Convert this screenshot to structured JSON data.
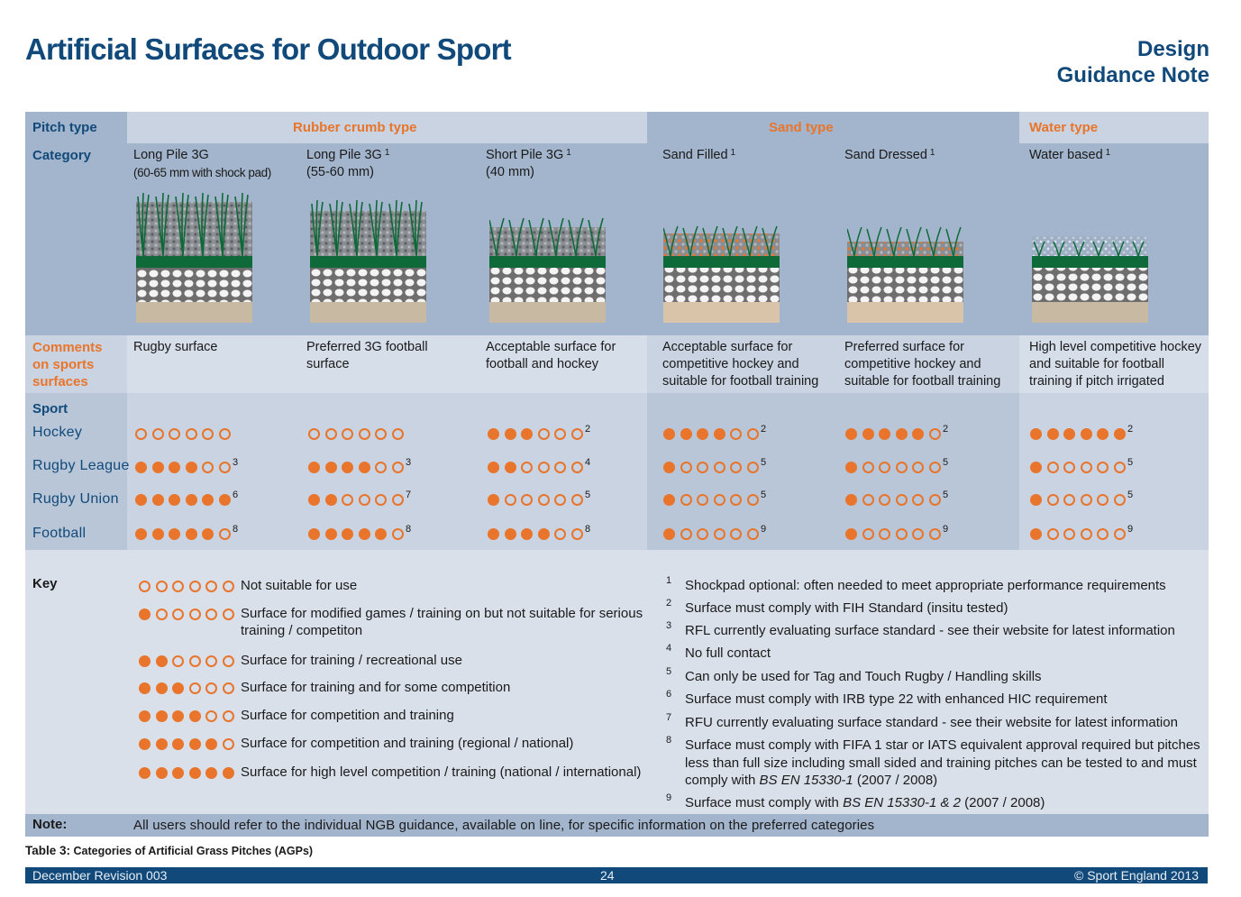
{
  "header": {
    "title": "Artificial Surfaces for Outdoor Sport",
    "right_line1": "Design",
    "right_line2": "Guidance Note"
  },
  "labels": {
    "pitch_type": "Pitch type",
    "category": "Category",
    "comments": "Comments on sports surfaces",
    "sport": "Sport",
    "key": "Key",
    "note": "Note:"
  },
  "groups": {
    "rubber": "Rubber crumb type",
    "sand": "Sand type",
    "water": "Water type"
  },
  "categories": [
    {
      "name": "Long Pile 3G",
      "sup": "",
      "size": "(60-65 mm with shock pad)",
      "comment": "Rugby surface"
    },
    {
      "name": "Long Pile 3G",
      "sup": "1",
      "size": "(55-60 mm)",
      "comment": "Preferred 3G football surface"
    },
    {
      "name": "Short Pile 3G",
      "sup": "1",
      "size": "(40 mm)",
      "comment": "Acceptable surface for football and hockey"
    },
    {
      "name": "Sand Filled",
      "sup": "1",
      "size": "",
      "comment": "Acceptable surface for competitive hockey and suitable for football training"
    },
    {
      "name": "Sand Dressed",
      "sup": "1",
      "size": "",
      "comment": "Preferred surface for competitive hockey and suitable for football training"
    },
    {
      "name": "Water based",
      "sup": "1",
      "size": "",
      "comment": "High level competitive hockey and suitable for football training if pitch irrigated"
    }
  ],
  "sports": [
    {
      "name": "Hockey",
      "ratings": [
        [
          0,
          ""
        ],
        [
          0,
          ""
        ],
        [
          3,
          "2"
        ],
        [
          4,
          "2"
        ],
        [
          5,
          "2"
        ],
        [
          6,
          "2"
        ]
      ]
    },
    {
      "name": "Rugby League",
      "ratings": [
        [
          4,
          "3"
        ],
        [
          4,
          "3"
        ],
        [
          2,
          "4"
        ],
        [
          1,
          "5"
        ],
        [
          1,
          "5"
        ],
        [
          1,
          "5"
        ]
      ]
    },
    {
      "name": "Rugby Union",
      "ratings": [
        [
          6,
          "6"
        ],
        [
          2,
          "7"
        ],
        [
          1,
          "5"
        ],
        [
          1,
          "5"
        ],
        [
          1,
          "5"
        ],
        [
          1,
          "5"
        ]
      ]
    },
    {
      "name": "Football",
      "ratings": [
        [
          5,
          "8"
        ],
        [
          5,
          "8"
        ],
        [
          4,
          "8"
        ],
        [
          1,
          "9"
        ],
        [
          1,
          "9"
        ],
        [
          1,
          "9"
        ]
      ]
    }
  ],
  "key_items": [
    {
      "level": 0,
      "text": "Not suitable for use"
    },
    {
      "level": 1,
      "text": "Surface for modified games / training on but not suitable for serious training / competiton"
    },
    {
      "level": 2,
      "text": "Surface for training / recreational use"
    },
    {
      "level": 3,
      "text": "Surface for training and for some competition"
    },
    {
      "level": 4,
      "text": "Surface for competition and training"
    },
    {
      "level": 5,
      "text": "Surface for competition and training (regional / national)"
    },
    {
      "level": 6,
      "text": "Surface for high level competition / training (national / international)"
    }
  ],
  "footnotes": [
    {
      "num": "1",
      "text": "Shockpad optional: often needed to meet appropriate performance requirements"
    },
    {
      "num": "2",
      "text": "Surface must comply with FIH Standard (insitu tested)"
    },
    {
      "num": "3",
      "text": "RFL currently evaluating surface standard - see their website for latest information"
    },
    {
      "num": "4",
      "text": "No full contact"
    },
    {
      "num": "5",
      "text": "Can only be used for Tag and Touch Rugby / Handling skills"
    },
    {
      "num": "6",
      "text": "Surface must comply with IRB type 22 with enhanced HIC requirement"
    },
    {
      "num": "7",
      "text": "RFU currently evaluating surface standard - see their website for latest information"
    },
    {
      "num": "8",
      "text_before": "Surface must comply with FIFA 1 star or IATS equivalent approval required but pitches less than full size including small sided and training pitches can be tested to and must comply with ",
      "text_italic": "BS EN 15330-1",
      "text_after": " (2007 / 2008)"
    },
    {
      "num": "9",
      "text_before": "Surface must comply with ",
      "text_italic": "BS EN 15330-1 & 2",
      "text_after": " (2007 / 2008)"
    }
  ],
  "note_text": "All users should refer to the individual NGB guidance, available on line, for specific information on the preferred categories",
  "caption": {
    "prefix": "Table 3:",
    "text": " Categories of Artificial Grass Pitches (AGPs)"
  },
  "footer": {
    "left": "December Revision 003",
    "center": "24",
    "right": "© Sport England 2013"
  },
  "colors": {
    "navy": "#114a7a",
    "orange": "#e8752b",
    "band_light": "#c9d3e1",
    "band_dark": "#a3b5cc",
    "turf_green": "#0f6a3a"
  }
}
